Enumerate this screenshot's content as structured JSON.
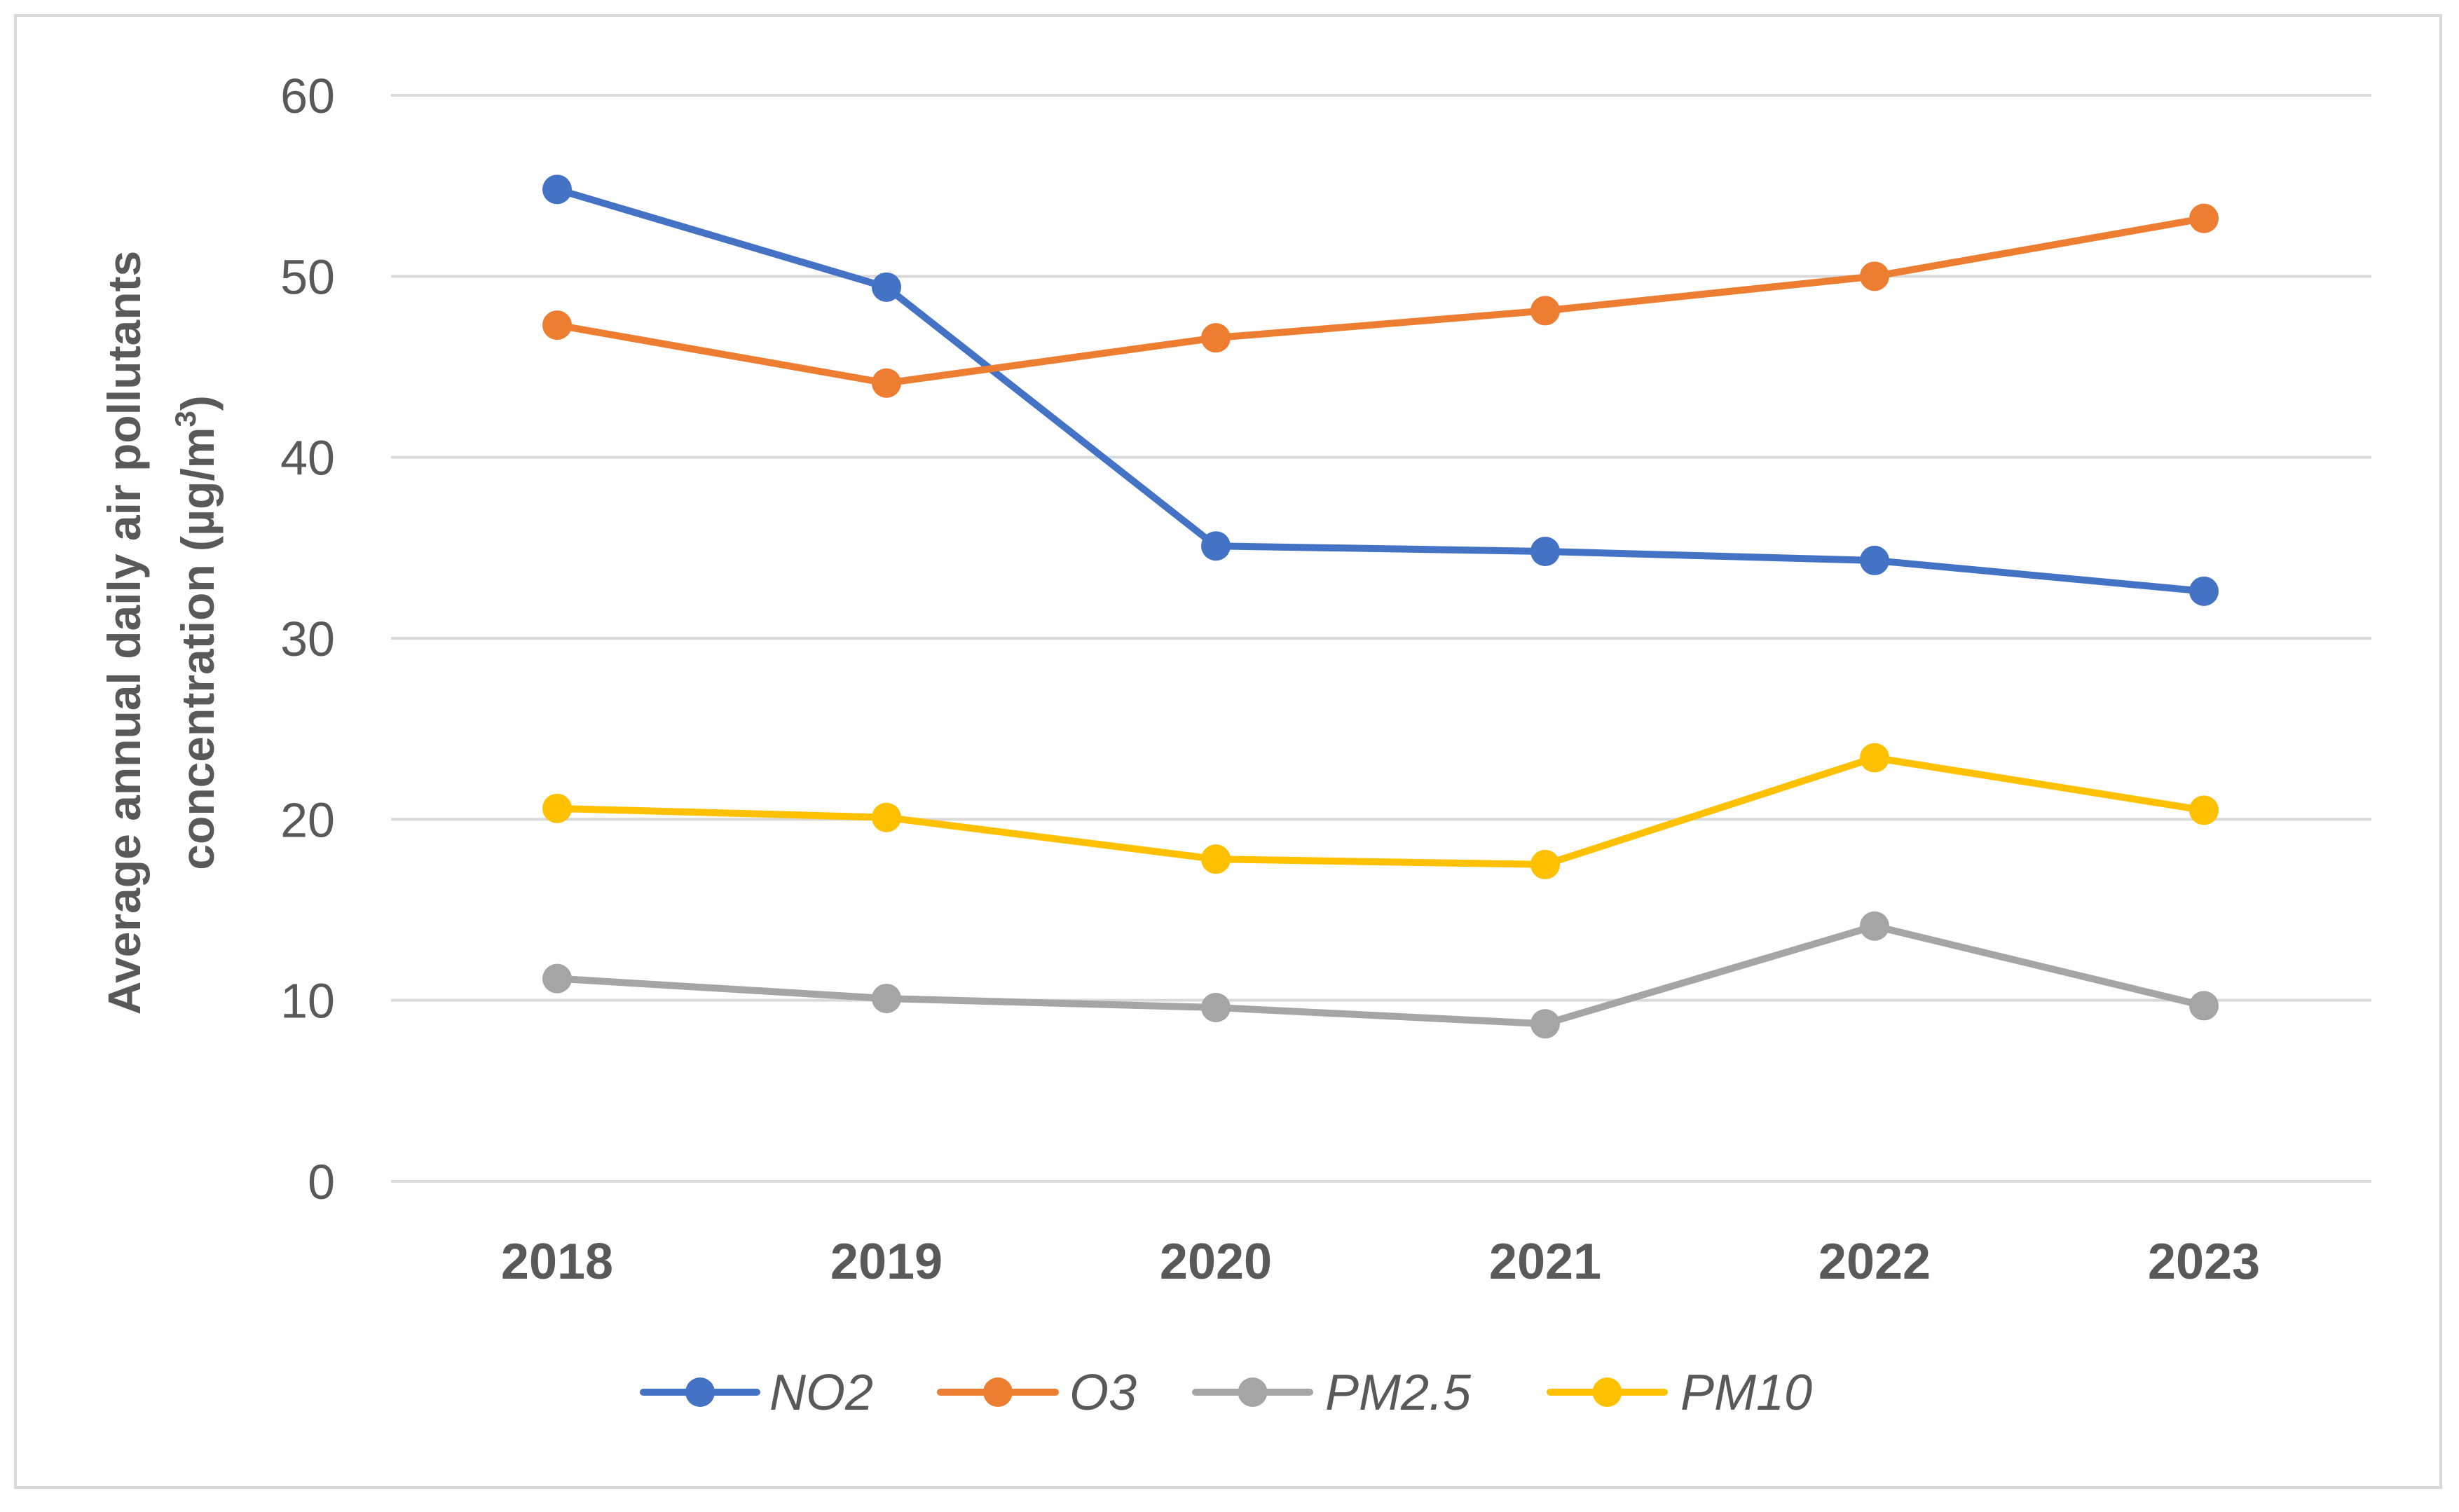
{
  "chart_data": {
    "type": "line",
    "categories": [
      "2018",
      "2019",
      "2020",
      "2021",
      "2022",
      "2023"
    ],
    "ylabel_line1": "Average annual daily air pollutants",
    "ylabel_line2_prefix": "concentration (µg/m",
    "ylabel_line2_sup": "3",
    "ylabel_line2_suffix": ")",
    "xlabel": "",
    "title": "",
    "ylim": [
      0,
      60
    ],
    "yticks": [
      0,
      10,
      20,
      30,
      40,
      50,
      60
    ],
    "grid": true,
    "legend_position": "bottom",
    "series": [
      {
        "name": "NO2",
        "color": "#4472c4",
        "values": [
          54.8,
          49.4,
          35.1,
          34.8,
          34.3,
          32.6
        ]
      },
      {
        "name": "O3",
        "color": "#ed7d31",
        "values": [
          47.3,
          44.1,
          46.6,
          48.1,
          50.0,
          53.2
        ]
      },
      {
        "name": "PM2.5",
        "color": "#a5a5a5",
        "values": [
          11.2,
          10.1,
          9.6,
          8.7,
          14.1,
          9.7
        ]
      },
      {
        "name": "PM10",
        "color": "#ffc000",
        "values": [
          20.6,
          20.1,
          17.8,
          17.5,
          23.4,
          20.5
        ]
      }
    ]
  }
}
